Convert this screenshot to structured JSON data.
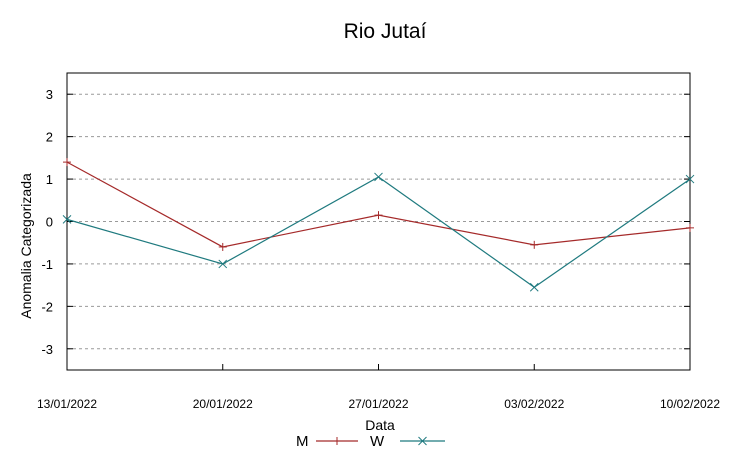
{
  "chart_data": {
    "type": "line",
    "title": "Rio Jutaí",
    "xlabel": "Data",
    "ylabel": "Anomalia Categorizada",
    "x": [
      "13/01/2022",
      "20/01/2022",
      "27/01/2022",
      "03/02/2022",
      "10/02/2022"
    ],
    "yticks": [
      "3",
      "2",
      "1",
      "0",
      "-1",
      "-2",
      "-3"
    ],
    "ylim": [
      -3.5,
      3.5
    ],
    "grid": "horizontal-dashed",
    "legend_position": "bottom-center",
    "series": [
      {
        "name": "M",
        "color": "#a52a2a",
        "marker": "plus",
        "values": [
          1.4,
          -0.6,
          0.15,
          -0.55,
          -0.15
        ]
      },
      {
        "name": "W",
        "color": "#1f7a7f",
        "marker": "cross",
        "values": [
          0.05,
          -1.0,
          1.05,
          -1.55,
          1.0
        ]
      }
    ]
  }
}
